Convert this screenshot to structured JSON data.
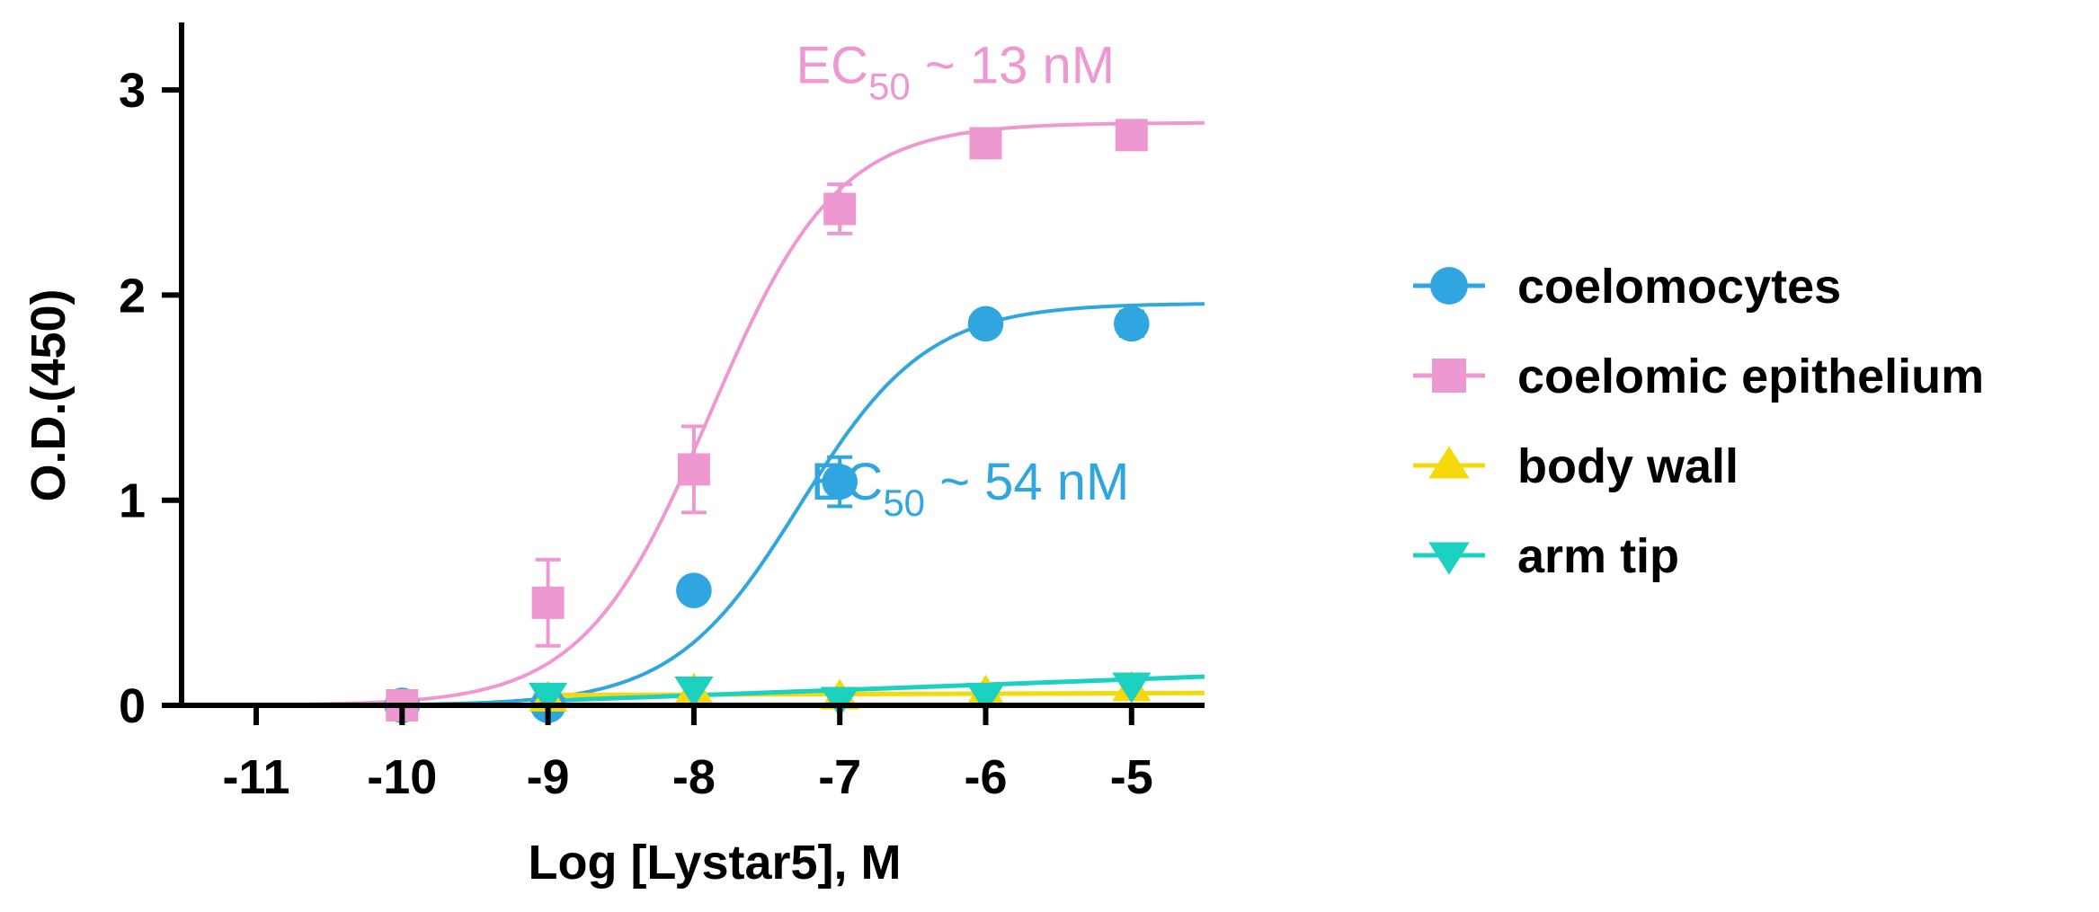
{
  "chart_data": {
    "type": "scatter",
    "xlabel": "Log [Lystar5], M",
    "ylabel": "O.D.(450)",
    "xlim": [
      -11.5,
      -4.5
    ],
    "ylim": [
      0,
      3.3
    ],
    "x_ticks": [
      -11,
      -10,
      -9,
      -8,
      -7,
      -6,
      -5
    ],
    "x_tick_labels": [
      "-11",
      "-10",
      "-9",
      "-8",
      "-7",
      "-6",
      "-5"
    ],
    "y_ticks": [
      0,
      1,
      2,
      3
    ],
    "y_tick_labels": [
      "0",
      "1",
      "2",
      "3"
    ],
    "grid": false,
    "legend_position": "right",
    "series": [
      {
        "name": "coelomocytes",
        "color": "#2FA6E0",
        "marker": "circle",
        "x": [
          -10,
          -9,
          -8,
          -7,
          -6,
          -5
        ],
        "y": [
          0.0,
          0.0,
          0.56,
          1.09,
          1.86,
          1.86
        ],
        "err": [
          0.0,
          0.0,
          0.0,
          0.12,
          0.0,
          0.06
        ],
        "fit": {
          "bottom": 0.0,
          "top": 1.96,
          "log_ec50": -7.27
        }
      },
      {
        "name": "coelomic epithelium",
        "color": "#EE98D2",
        "marker": "square",
        "x": [
          -10,
          -9,
          -8,
          -7,
          -6,
          -5
        ],
        "y": [
          0.0,
          0.5,
          1.15,
          2.42,
          2.74,
          2.78
        ],
        "err": [
          0.0,
          0.21,
          0.21,
          0.12,
          0.0,
          0.0
        ],
        "fit": {
          "bottom": 0.0,
          "top": 2.84,
          "log_ec50": -7.89
        }
      },
      {
        "name": "body wall",
        "color": "#F5D90A",
        "marker": "triangle-up",
        "x": [
          -9,
          -8,
          -7,
          -6,
          -5
        ],
        "y": [
          0.03,
          0.07,
          0.04,
          0.06,
          0.08
        ],
        "err": [
          0.0,
          0.0,
          0.0,
          0.0,
          0.0
        ],
        "fit_line": {
          "x": [
            -9.1,
            -4.5
          ],
          "y": [
            0.05,
            0.06
          ]
        }
      },
      {
        "name": "arm tip",
        "color": "#1DD1C1",
        "marker": "triangle-down",
        "x": [
          -9,
          -8,
          -7,
          -6,
          -5
        ],
        "y": [
          0.05,
          0.08,
          0.03,
          0.05,
          0.1
        ],
        "err": [
          0.0,
          0.0,
          0.0,
          0.0,
          0.0
        ],
        "fit_line": {
          "x": [
            -9.1,
            -4.5
          ],
          "y": [
            0.02,
            0.14
          ]
        }
      }
    ],
    "annotations": [
      {
        "series": "coelomic epithelium",
        "main": "EC",
        "sub": "50",
        "rest": " ~ 13 nM",
        "x": -7.3,
        "y": 3.12
      },
      {
        "series": "coelomocytes",
        "main": "EC",
        "sub": "50",
        "rest": " ~ 54 nM",
        "x": -7.2,
        "y": 1.09
      }
    ]
  }
}
